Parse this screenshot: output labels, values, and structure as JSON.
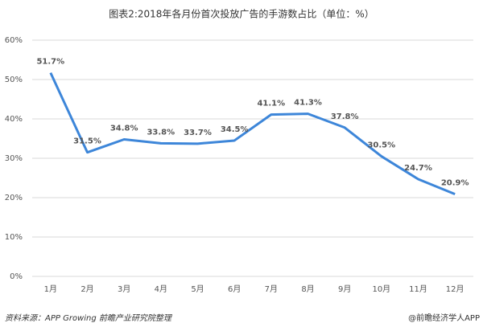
{
  "chart_data": {
    "type": "line",
    "title": "图表2:2018年各月份首次投放广告的手游数占比（单位：%）",
    "categories": [
      "1月",
      "2月",
      "3月",
      "4月",
      "5月",
      "6月",
      "7月",
      "8月",
      "9月",
      "10月",
      "11月",
      "12月"
    ],
    "values": [
      51.7,
      31.5,
      34.8,
      33.8,
      33.7,
      34.5,
      41.1,
      41.3,
      37.8,
      30.5,
      24.7,
      20.9
    ],
    "value_labels": [
      "51.7%",
      "31.5%",
      "34.8%",
      "33.8%",
      "33.7%",
      "34.5%",
      "41.1%",
      "41.3%",
      "37.8%",
      "30.5%",
      "24.7%",
      "20.9%"
    ],
    "color": "#3d86d9",
    "ylim": [
      0,
      60
    ],
    "yticks": [
      {
        "value": 0,
        "label": "0%"
      },
      {
        "value": 10,
        "label": "10%"
      },
      {
        "value": 20,
        "label": "20%"
      },
      {
        "value": 30,
        "label": "30%"
      },
      {
        "value": 40,
        "label": "40%"
      },
      {
        "value": 50,
        "label": "50%"
      },
      {
        "value": 60,
        "label": "60%"
      }
    ],
    "grid": true,
    "source": "资料来源：APP Growing  前瞻产业研究院整理",
    "credit": "@前瞻经济学人APP"
  }
}
